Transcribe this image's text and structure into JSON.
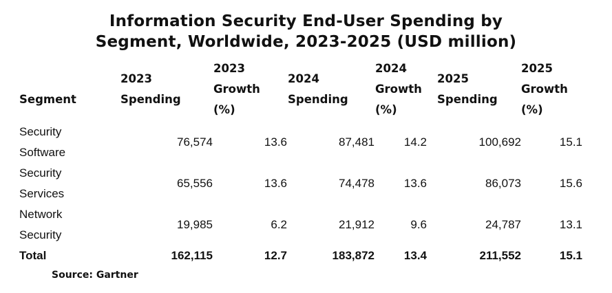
{
  "title_line1": "Information Security End-User Spending by",
  "title_line2": "Segment, Worldwide, 2023-2025  (USD million)",
  "headers": [
    [
      "Segment"
    ],
    [
      "2023",
      "Spending"
    ],
    [
      "2023",
      "Growth",
      "(%)"
    ],
    [
      "2024",
      "Spending"
    ],
    [
      "2024",
      "Growth",
      "(%)"
    ],
    [
      "2025",
      "Spending"
    ],
    [
      "2025",
      "Growth",
      "(%)"
    ]
  ],
  "rows": [
    {
      "segment": [
        "Security",
        "Software"
      ],
      "values": [
        "76,574",
        "13.6",
        "87,481",
        "14.2",
        "100,692",
        "15.1"
      ]
    },
    {
      "segment": [
        "Security",
        "Services"
      ],
      "values": [
        "65,556",
        "13.6",
        "74,478",
        "13.6",
        "86,073",
        "15.6"
      ]
    },
    {
      "segment": [
        "Network",
        "Security"
      ],
      "values": [
        "19,985",
        "6.2",
        "21,912",
        "9.6",
        "24,787",
        "13.1"
      ]
    }
  ],
  "total": {
    "label": "Total",
    "values": [
      "162,115",
      "12.7",
      "183,872",
      "13.4",
      "211,552",
      "15.1"
    ]
  },
  "source": "Source: Gartner"
}
